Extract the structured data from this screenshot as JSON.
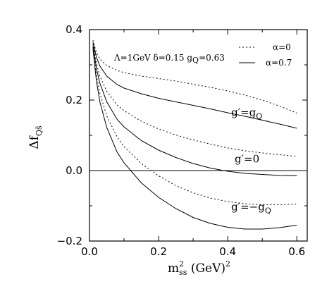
{
  "chart_data": {
    "type": "line",
    "xlabel": {
      "main": "m",
      "sup": "2",
      "sub": "ss",
      "rest": " (GeV)",
      "rest_sup": "2"
    },
    "ylabel": {
      "main": "Δf",
      "sub": "Qs̄"
    },
    "xlim": [
      0.0,
      0.63
    ],
    "ylim": [
      -0.2,
      0.4
    ],
    "xticks": [
      {
        "value": 0.0,
        "label": "0.0"
      },
      {
        "value": 0.2,
        "label": "0.2"
      },
      {
        "value": 0.4,
        "label": "0.4"
      },
      {
        "value": 0.6,
        "label": "0.6"
      }
    ],
    "yticks": [
      {
        "value": -0.2,
        "label": "−0.2"
      },
      {
        "value": 0.0,
        "label": "0.0"
      },
      {
        "value": 0.2,
        "label": "0.2"
      },
      {
        "value": 0.4,
        "label": "0.4"
      }
    ],
    "annotation": "Λ=1GeV  δ=0.15  g",
    "annotation_sub": "Q",
    "annotation_tail": "=0.63",
    "legend": [
      {
        "label": "α=0",
        "style": "dotted"
      },
      {
        "label": "α=0.7",
        "style": "solid"
      }
    ],
    "curve_labels": [
      {
        "text": "g′=g",
        "sub": "Q",
        "x": 0.41,
        "y": 0.155
      },
      {
        "text": "g′=0",
        "sub": "",
        "x": 0.42,
        "y": 0.023
      },
      {
        "text": "g′=−g",
        "sub": "Q",
        "x": 0.41,
        "y": -0.113
      }
    ],
    "series": [
      {
        "group": "g′=g_Q",
        "style": "dotted",
        "x": [
          0.01,
          0.02,
          0.03,
          0.05,
          0.08,
          0.1,
          0.15,
          0.2,
          0.25,
          0.3,
          0.35,
          0.4,
          0.45,
          0.5,
          0.55,
          0.6
        ],
        "values": [
          0.37,
          0.335,
          0.317,
          0.298,
          0.284,
          0.278,
          0.268,
          0.261,
          0.254,
          0.245,
          0.236,
          0.226,
          0.214,
          0.2,
          0.183,
          0.163
        ]
      },
      {
        "group": "g′=g_Q",
        "style": "solid",
        "x": [
          0.01,
          0.02,
          0.03,
          0.05,
          0.08,
          0.1,
          0.15,
          0.2,
          0.25,
          0.3,
          0.35,
          0.4,
          0.45,
          0.5,
          0.55,
          0.6
        ],
        "values": [
          0.365,
          0.322,
          0.297,
          0.268,
          0.244,
          0.234,
          0.218,
          0.205,
          0.195,
          0.185,
          0.175,
          0.164,
          0.154,
          0.143,
          0.132,
          0.12
        ]
      },
      {
        "group": "g′=0",
        "style": "dotted",
        "x": [
          0.01,
          0.02,
          0.03,
          0.05,
          0.08,
          0.1,
          0.15,
          0.2,
          0.25,
          0.3,
          0.35,
          0.4,
          0.45,
          0.5,
          0.55,
          0.6
        ],
        "values": [
          0.36,
          0.305,
          0.268,
          0.225,
          0.186,
          0.17,
          0.14,
          0.118,
          0.101,
          0.087,
          0.075,
          0.064,
          0.056,
          0.05,
          0.045,
          0.04
        ]
      },
      {
        "group": "g′=0",
        "style": "solid",
        "x": [
          0.01,
          0.02,
          0.03,
          0.05,
          0.08,
          0.1,
          0.15,
          0.2,
          0.25,
          0.3,
          0.35,
          0.4,
          0.45,
          0.5,
          0.55,
          0.6
        ],
        "values": [
          0.355,
          0.29,
          0.248,
          0.195,
          0.145,
          0.124,
          0.085,
          0.058,
          0.037,
          0.02,
          0.007,
          -0.002,
          -0.008,
          -0.011,
          -0.014,
          -0.015
        ]
      },
      {
        "group": "g′=−g_Q",
        "style": "dotted",
        "x": [
          0.01,
          0.02,
          0.03,
          0.05,
          0.08,
          0.1,
          0.15,
          0.2,
          0.25,
          0.3,
          0.35,
          0.4,
          0.45,
          0.5,
          0.55,
          0.6
        ],
        "values": [
          0.35,
          0.27,
          0.22,
          0.155,
          0.095,
          0.068,
          0.02,
          -0.015,
          -0.043,
          -0.063,
          -0.078,
          -0.088,
          -0.094,
          -0.097,
          -0.097,
          -0.095
        ]
      },
      {
        "group": "g′=−g_Q",
        "style": "solid",
        "x": [
          0.01,
          0.02,
          0.03,
          0.05,
          0.08,
          0.1,
          0.15,
          0.2,
          0.25,
          0.3,
          0.35,
          0.4,
          0.45,
          0.5,
          0.55,
          0.6
        ],
        "values": [
          0.345,
          0.255,
          0.195,
          0.122,
          0.052,
          0.022,
          -0.035,
          -0.076,
          -0.108,
          -0.133,
          -0.15,
          -0.161,
          -0.166,
          -0.166,
          -0.162,
          -0.155
        ]
      }
    ]
  }
}
